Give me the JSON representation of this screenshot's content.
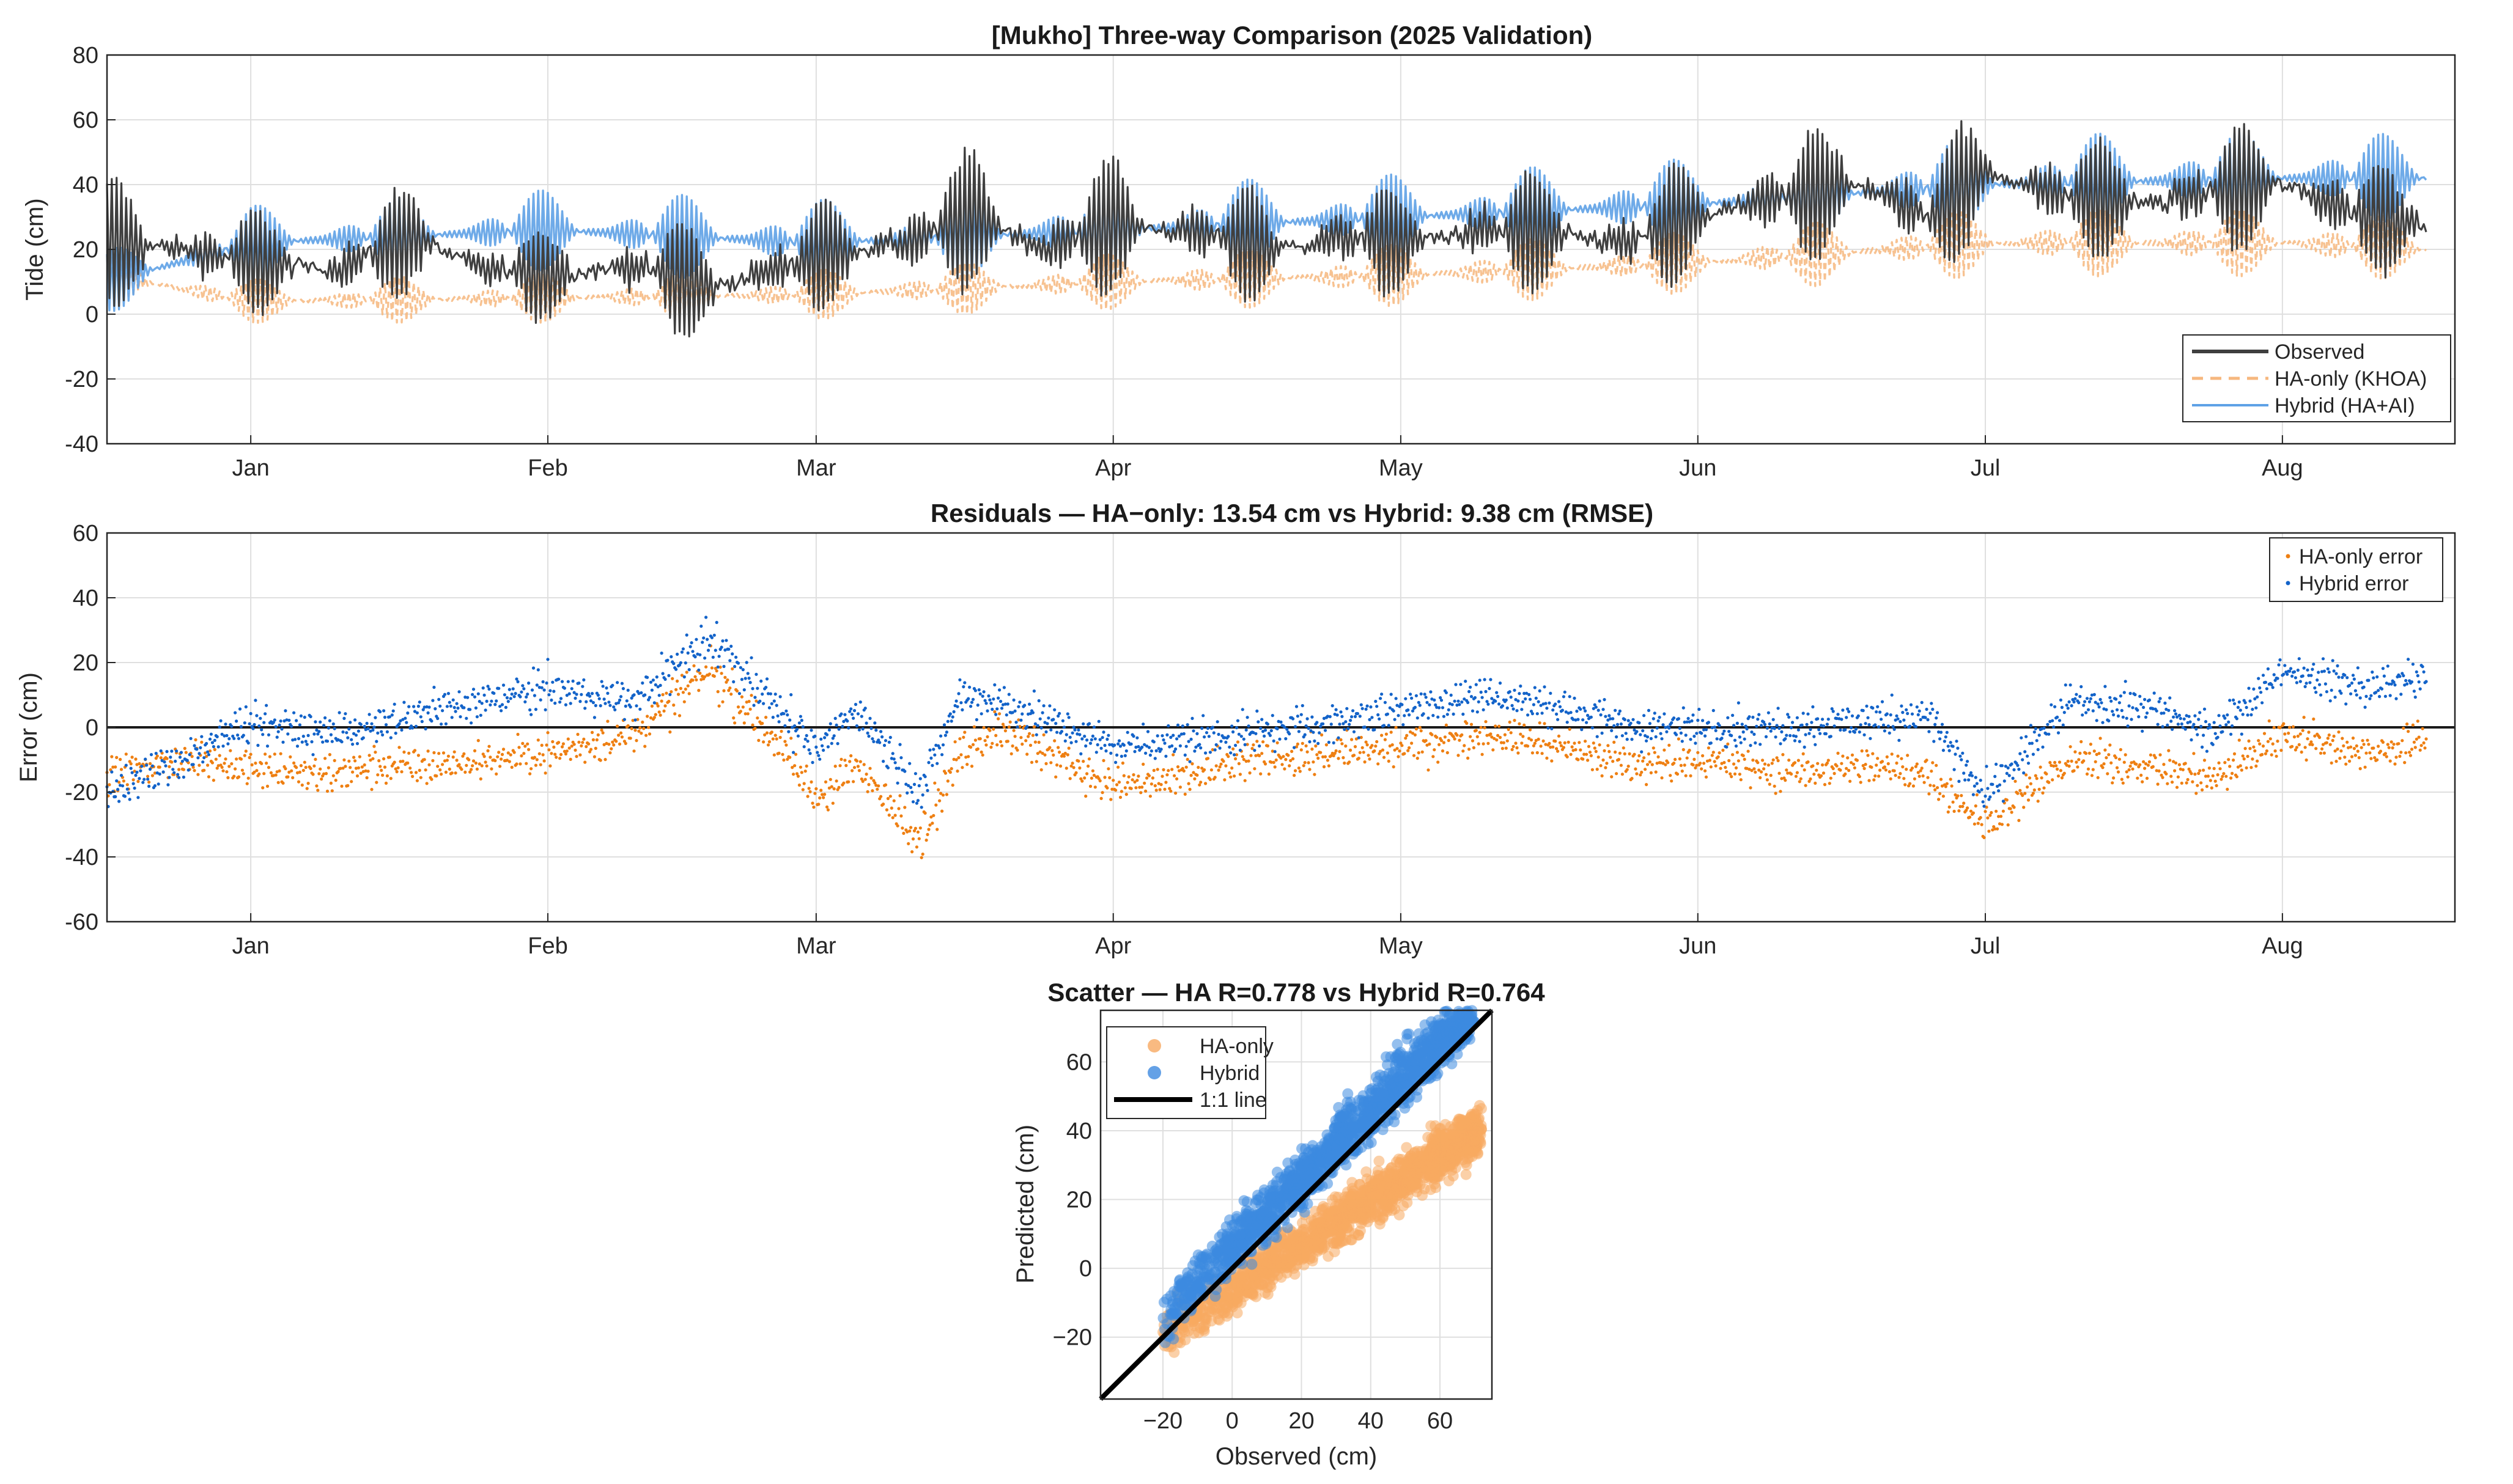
{
  "chart_data": [
    {
      "type": "line",
      "title": "[Mukho] Three-way Comparison (2025 Validation)",
      "ylabel": "Tide (cm)",
      "xlabel": "",
      "ylim": [
        -40,
        80
      ],
      "yticks": [
        -40,
        -20,
        0,
        20,
        40,
        60,
        80
      ],
      "xlim": [
        "2024-12-17",
        "2025-08-19"
      ],
      "xticks": [
        {
          "date": "2025-01-01",
          "label": "Jan"
        },
        {
          "date": "2025-02-01",
          "label": "Feb"
        },
        {
          "date": "2025-03-01",
          "label": "Mar"
        },
        {
          "date": "2025-04-01",
          "label": "Apr"
        },
        {
          "date": "2025-05-01",
          "label": "May"
        },
        {
          "date": "2025-06-01",
          "label": "Jun"
        },
        {
          "date": "2025-07-01",
          "label": "Jul"
        },
        {
          "date": "2025-08-01",
          "label": "Aug"
        }
      ],
      "grid": true,
      "legend_location": "bottom-right",
      "series": [
        {
          "name": "Observed",
          "color": "#3f3f3f",
          "style": "solid",
          "x": [
            "2024-12-17",
            "2024-12-25",
            "2025-01-01",
            "2025-01-10",
            "2025-01-18",
            "2025-01-25",
            "2025-02-01",
            "2025-02-10",
            "2025-02-18",
            "2025-02-25",
            "2025-03-01",
            "2025-03-10",
            "2025-03-18",
            "2025-03-25",
            "2025-04-01",
            "2025-04-10",
            "2025-04-18",
            "2025-04-25",
            "2025-05-01",
            "2025-05-10",
            "2025-05-18",
            "2025-05-25",
            "2025-06-01",
            "2025-06-10",
            "2025-06-18",
            "2025-06-25",
            "2025-07-01",
            "2025-07-10",
            "2025-07-18",
            "2025-07-25",
            "2025-08-01",
            "2025-08-10",
            "2025-08-16"
          ],
          "mean": [
            22,
            20,
            16,
            14,
            24,
            14,
            12,
            15,
            8,
            14,
            18,
            22,
            30,
            20,
            28,
            25,
            20,
            24,
            22,
            26,
            24,
            22,
            30,
            36,
            40,
            30,
            44,
            36,
            34,
            38,
            40,
            30,
            28
          ],
          "amplitude": [
            20,
            18,
            16,
            14,
            18,
            14,
            14,
            16,
            20,
            18,
            18,
            20,
            22,
            18,
            22,
            20,
            16,
            18,
            16,
            20,
            18,
            16,
            20,
            22,
            22,
            18,
            24,
            20,
            18,
            20,
            20,
            18,
            16
          ]
        },
        {
          "name": "HA-only (KHOA)",
          "color": "#f6b77e",
          "style": "dashed",
          "x": [
            "2024-12-17",
            "2025-01-01",
            "2025-02-01",
            "2025-03-01",
            "2025-04-01",
            "2025-05-01",
            "2025-06-01",
            "2025-07-01",
            "2025-08-01",
            "2025-08-16"
          ],
          "mean": [
            12,
            4,
            5,
            6,
            10,
            12,
            16,
            22,
            22,
            20
          ],
          "amplitude": [
            7,
            7,
            8,
            8,
            9,
            10,
            10,
            11,
            11,
            10
          ]
        },
        {
          "name": "Hybrid (HA+AI)",
          "color": "#5ea1e6",
          "style": "solid",
          "x": [
            "2024-12-17",
            "2025-01-01",
            "2025-02-01",
            "2025-03-01",
            "2025-04-01",
            "2025-05-01",
            "2025-06-01",
            "2025-07-01",
            "2025-08-01",
            "2025-08-16"
          ],
          "mean": [
            10,
            22,
            26,
            22,
            26,
            30,
            34,
            40,
            42,
            42
          ],
          "amplitude": [
            10,
            12,
            13,
            14,
            15,
            14,
            15,
            16,
            16,
            14
          ]
        }
      ]
    },
    {
      "type": "scatter",
      "title": "Residuals — HA−only: 13.54 cm vs Hybrid: 9.38 cm (RMSE)",
      "ylabel": "Error (cm)",
      "xlabel": "",
      "ylim": [
        -60,
        60
      ],
      "yticks": [
        -60,
        -40,
        -20,
        0,
        20,
        40,
        60
      ],
      "xlim": [
        "2024-12-17",
        "2025-08-19"
      ],
      "xticks": [
        {
          "date": "2025-01-01",
          "label": "Jan"
        },
        {
          "date": "2025-02-01",
          "label": "Feb"
        },
        {
          "date": "2025-03-01",
          "label": "Mar"
        },
        {
          "date": "2025-04-01",
          "label": "Apr"
        },
        {
          "date": "2025-05-01",
          "label": "May"
        },
        {
          "date": "2025-06-01",
          "label": "Jun"
        },
        {
          "date": "2025-07-01",
          "label": "Jul"
        },
        {
          "date": "2025-08-01",
          "label": "Aug"
        }
      ],
      "zero_line": true,
      "grid": true,
      "legend_location": "top-right",
      "series": [
        {
          "name": "HA-only error",
          "color": "#ee7f12",
          "x": [
            "2024-12-17",
            "2024-12-25",
            "2025-01-01",
            "2025-01-08",
            "2025-01-14",
            "2025-01-20",
            "2025-02-01",
            "2025-02-10",
            "2025-02-18",
            "2025-02-25",
            "2025-03-01",
            "2025-03-05",
            "2025-03-12",
            "2025-03-16",
            "2025-03-20",
            "2025-04-01",
            "2025-04-08",
            "2025-04-15",
            "2025-04-25",
            "2025-05-01",
            "2025-05-10",
            "2025-05-18",
            "2025-05-25",
            "2025-06-01",
            "2025-06-10",
            "2025-06-18",
            "2025-06-25",
            "2025-07-01",
            "2025-07-10",
            "2025-07-18",
            "2025-07-25",
            "2025-08-01",
            "2025-08-10",
            "2025-08-16"
          ],
          "mean": [
            -15,
            -10,
            -12,
            -15,
            -12,
            -12,
            -8,
            -2,
            18,
            -5,
            -22,
            -12,
            -34,
            -8,
            0,
            -18,
            -16,
            -10,
            -8,
            -6,
            -2,
            -6,
            -12,
            -10,
            -14,
            -12,
            -14,
            -30,
            -10,
            -12,
            -16,
            -2,
            -8,
            -4
          ],
          "spread": [
            4,
            4,
            4,
            4,
            4,
            4,
            4,
            4,
            6,
            4,
            5,
            4,
            5,
            4,
            4,
            4,
            4,
            4,
            4,
            4,
            4,
            4,
            4,
            4,
            4,
            4,
            4,
            5,
            4,
            4,
            4,
            4,
            4,
            4
          ]
        },
        {
          "name": "Hybrid error",
          "color": "#1363c9",
          "x": [
            "2024-12-17",
            "2024-12-25",
            "2025-01-01",
            "2025-01-08",
            "2025-01-14",
            "2025-01-20",
            "2025-02-01",
            "2025-02-10",
            "2025-02-18",
            "2025-02-25",
            "2025-03-01",
            "2025-03-05",
            "2025-03-12",
            "2025-03-16",
            "2025-03-20",
            "2025-04-01",
            "2025-04-08",
            "2025-04-15",
            "2025-04-25",
            "2025-05-01",
            "2025-05-10",
            "2025-05-18",
            "2025-05-25",
            "2025-06-01",
            "2025-06-10",
            "2025-06-18",
            "2025-06-25",
            "2025-07-01",
            "2025-07-10",
            "2025-07-18",
            "2025-07-25",
            "2025-08-01",
            "2025-08-10",
            "2025-08-16"
          ],
          "mean": [
            -20,
            -10,
            2,
            -2,
            0,
            5,
            12,
            8,
            28,
            6,
            -8,
            6,
            -20,
            10,
            8,
            -6,
            -4,
            -2,
            2,
            6,
            10,
            6,
            0,
            0,
            0,
            2,
            4,
            -22,
            8,
            6,
            -2,
            18,
            12,
            16
          ],
          "spread": [
            4,
            4,
            4,
            4,
            4,
            4,
            4,
            4,
            6,
            4,
            5,
            4,
            5,
            4,
            4,
            4,
            4,
            4,
            4,
            4,
            4,
            4,
            4,
            4,
            4,
            4,
            4,
            5,
            4,
            4,
            4,
            4,
            4,
            4
          ]
        }
      ]
    },
    {
      "type": "scatter",
      "title": "Scatter — HA R=0.778 vs Hybrid R=0.764",
      "xlabel": "Observed (cm)",
      "ylabel": "Predicted (cm)",
      "xlim": [
        -38,
        75
      ],
      "ylim": [
        -38,
        75
      ],
      "xticks": [
        "−20",
        "0",
        "20",
        "40",
        "60"
      ],
      "yticks": [
        "−20",
        "0",
        "20",
        "40",
        "60"
      ],
      "grid": true,
      "legend_location": "top-left",
      "series": [
        {
          "name": "HA-only",
          "color": "#f7a961",
          "slope": 0.65,
          "intercept": -6,
          "x_range": [
            -20,
            72
          ],
          "noise": 7
        },
        {
          "name": "Hybrid",
          "color": "#3d8ae0",
          "slope": 1.0,
          "intercept": 6,
          "x_range": [
            -20,
            70
          ],
          "noise": 8
        }
      ],
      "reference_line": {
        "name": "1:1 line",
        "color": "#000000",
        "slope": 1,
        "intercept": 0
      }
    }
  ]
}
